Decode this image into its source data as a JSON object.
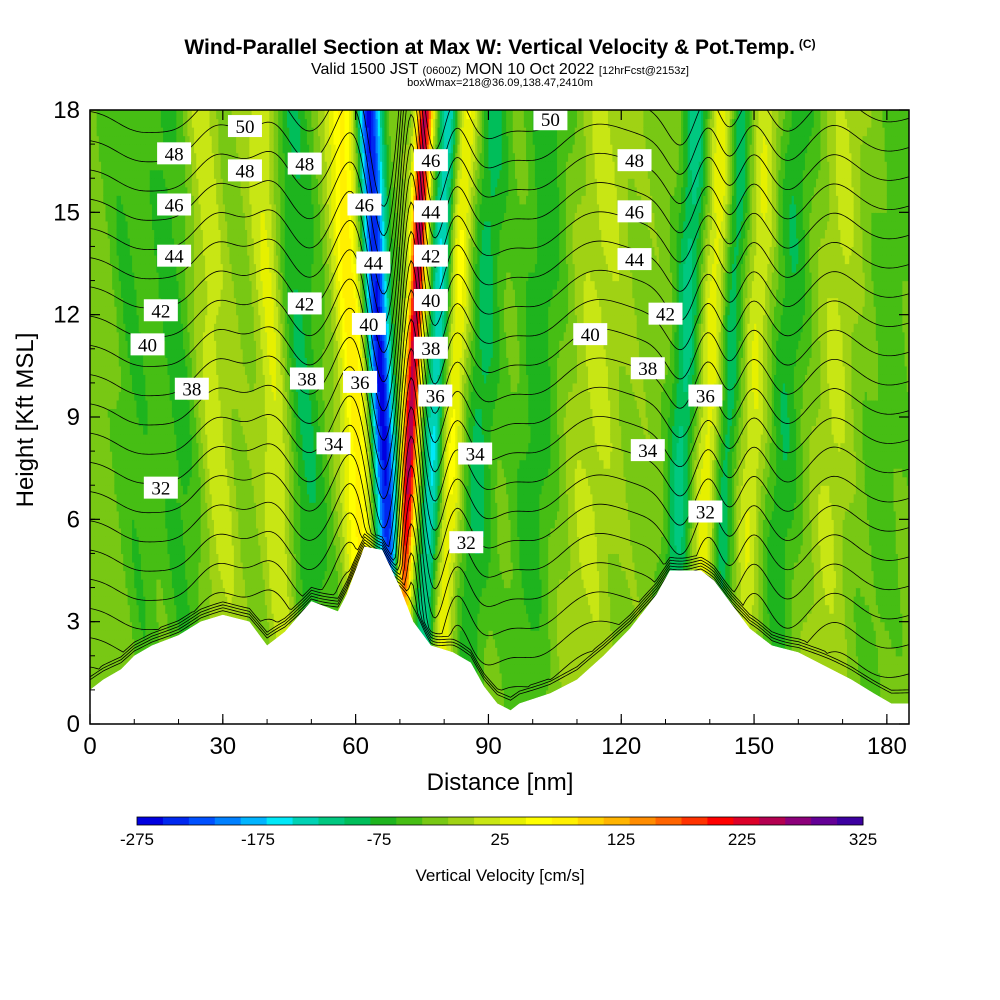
{
  "header": {
    "title": "Wind-Parallel Section at Max W: Vertical Velocity & Pot.Temp.",
    "title_mark": "(C)",
    "valid_a": "Valid 1500 JST",
    "valid_zulu": "(0600Z)",
    "valid_b": "MON 10 Oct 2022",
    "forecast": "[12hrFcst@2153z]",
    "box_info": "boxWmax=218@36.09,138.47,2410m"
  },
  "colorbar": {
    "label": "Vertical Velocity [cm/s]",
    "tick_labels": [
      "-275",
      "-175",
      "-75",
      "25",
      "125",
      "225",
      "325"
    ],
    "min": -275,
    "max": 325,
    "step": 25,
    "colors": [
      "#0000e0",
      "#0028f0",
      "#0050ff",
      "#0080ff",
      "#00b4ff",
      "#00e8f8",
      "#00d2b4",
      "#00c880",
      "#00be5a",
      "#1eb41e",
      "#46be14",
      "#78c814",
      "#a0d214",
      "#c8e614",
      "#e6f000",
      "#ffff00",
      "#fff000",
      "#ffd200",
      "#ffb400",
      "#ff8c00",
      "#ff6400",
      "#ff3200",
      "#ff0000",
      "#dc0028",
      "#b40050",
      "#8c007a",
      "#640096",
      "#3c00a0"
    ]
  },
  "chart_data": {
    "type": "heatmap",
    "title": "Wind-Parallel Section at Max W: Vertical Velocity & Pot.Temp.",
    "xlabel": "Distance [nm]",
    "ylabel": "Height [Kft MSL]",
    "xlim": [
      0,
      185
    ],
    "ylim": [
      0,
      18
    ],
    "x_ticks": [
      0,
      30,
      60,
      90,
      120,
      150,
      180
    ],
    "y_ticks": [
      0,
      3,
      6,
      9,
      12,
      15,
      18
    ],
    "field": "Vertical Velocity [cm/s]",
    "field_range": [
      -275,
      325
    ],
    "max_w": 218,
    "terrain_kft": [
      [
        0,
        1
      ],
      [
        3,
        1.3
      ],
      [
        7,
        1.6
      ],
      [
        10,
        2
      ],
      [
        14,
        2.3
      ],
      [
        20,
        2.6
      ],
      [
        25,
        3
      ],
      [
        30,
        3.2
      ],
      [
        36,
        3
      ],
      [
        40,
        2.3
      ],
      [
        44,
        2.7
      ],
      [
        50,
        3.6
      ],
      [
        56,
        3.3
      ],
      [
        58,
        3.8
      ],
      [
        62,
        5.2
      ],
      [
        66,
        5.1
      ],
      [
        70,
        4
      ],
      [
        73,
        3
      ],
      [
        77,
        2.3
      ],
      [
        82,
        2.1
      ],
      [
        86,
        1.8
      ],
      [
        89,
        1.1
      ],
      [
        92,
        0.6
      ],
      [
        95,
        0.4
      ],
      [
        97,
        0.6
      ],
      [
        104,
        0.9
      ],
      [
        110,
        1.3
      ],
      [
        116,
        2
      ],
      [
        122,
        2.8
      ],
      [
        128,
        3.8
      ],
      [
        131,
        4.5
      ],
      [
        138,
        4.5
      ],
      [
        141,
        4.2
      ],
      [
        145,
        3.5
      ],
      [
        149,
        2.8
      ],
      [
        154,
        2.3
      ],
      [
        160,
        2.1
      ],
      [
        166,
        1.7
      ],
      [
        172,
        1.3
      ],
      [
        177,
        0.9
      ],
      [
        181,
        0.6
      ],
      [
        185,
        0.6
      ]
    ],
    "w_features": [
      {
        "x": 66,
        "width": 2.8,
        "value": -275
      },
      {
        "x": 72.5,
        "width": 1.8,
        "value": 325
      },
      {
        "x": 78,
        "width": 2.4,
        "value": -150
      },
      {
        "x": 60,
        "width": 3.5,
        "value": 125
      },
      {
        "x": 82,
        "width": 3,
        "value": 100
      },
      {
        "x": 88,
        "width": 4,
        "value": -75
      },
      {
        "x": 42,
        "width": 3.5,
        "value": 75
      },
      {
        "x": 48,
        "width": 5,
        "value": -70
      },
      {
        "x": 28,
        "width": 4,
        "value": 50
      },
      {
        "x": 20,
        "width": 5,
        "value": -50
      },
      {
        "x": 10,
        "width": 4,
        "value": -40
      },
      {
        "x": 101,
        "width": 5,
        "value": -55
      },
      {
        "x": 114,
        "width": 6,
        "value": 40
      },
      {
        "x": 134,
        "width": 3,
        "value": -100
      },
      {
        "x": 140,
        "width": 3,
        "value": 80
      },
      {
        "x": 144,
        "width": 2.5,
        "value": -90
      },
      {
        "x": 150,
        "width": 3,
        "value": 60
      },
      {
        "x": 157,
        "width": 4,
        "value": -60
      },
      {
        "x": 168,
        "width": 4,
        "value": 40
      },
      {
        "x": 180,
        "width": 5,
        "value": -30
      }
    ],
    "theta_labels": [
      {
        "text": "50",
        "x": 35,
        "y": 17.5
      },
      {
        "text": "48",
        "x": 19,
        "y": 16.7
      },
      {
        "text": "48",
        "x": 35,
        "y": 16.2
      },
      {
        "text": "48",
        "x": 48.5,
        "y": 16.4
      },
      {
        "text": "46",
        "x": 19,
        "y": 15.2
      },
      {
        "text": "44",
        "x": 19,
        "y": 13.7
      },
      {
        "text": "42",
        "x": 16,
        "y": 12.1
      },
      {
        "text": "42",
        "x": 48.5,
        "y": 12.3
      },
      {
        "text": "40",
        "x": 13,
        "y": 11.1
      },
      {
        "text": "38",
        "x": 23,
        "y": 9.8
      },
      {
        "text": "38",
        "x": 49,
        "y": 10.1
      },
      {
        "text": "36",
        "x": 61,
        "y": 10.0
      },
      {
        "text": "34",
        "x": 55,
        "y": 8.2
      },
      {
        "text": "32",
        "x": 16,
        "y": 6.9
      },
      {
        "text": "46",
        "x": 62,
        "y": 15.2
      },
      {
        "text": "44",
        "x": 64,
        "y": 13.5
      },
      {
        "text": "40",
        "x": 63,
        "y": 11.7
      },
      {
        "text": "46",
        "x": 77,
        "y": 16.5
      },
      {
        "text": "44",
        "x": 77,
        "y": 15.0
      },
      {
        "text": "42",
        "x": 77,
        "y": 13.7
      },
      {
        "text": "40",
        "x": 77,
        "y": 12.4
      },
      {
        "text": "38",
        "x": 77,
        "y": 11.0
      },
      {
        "text": "36",
        "x": 78,
        "y": 9.6
      },
      {
        "text": "34",
        "x": 87,
        "y": 7.9
      },
      {
        "text": "32",
        "x": 85,
        "y": 5.3
      },
      {
        "text": "50",
        "x": 104,
        "y": 17.7
      },
      {
        "text": "48",
        "x": 123,
        "y": 16.5
      },
      {
        "text": "46",
        "x": 123,
        "y": 15.0
      },
      {
        "text": "44",
        "x": 123,
        "y": 13.6
      },
      {
        "text": "42",
        "x": 130,
        "y": 12.0
      },
      {
        "text": "40",
        "x": 113,
        "y": 11.4
      },
      {
        "text": "38",
        "x": 126,
        "y": 10.4
      },
      {
        "text": "36",
        "x": 139,
        "y": 9.6
      },
      {
        "text": "34",
        "x": 126,
        "y": 8.0
      },
      {
        "text": "32",
        "x": 139,
        "y": 6.2
      }
    ],
    "theta_range": [
      30,
      51
    ]
  }
}
